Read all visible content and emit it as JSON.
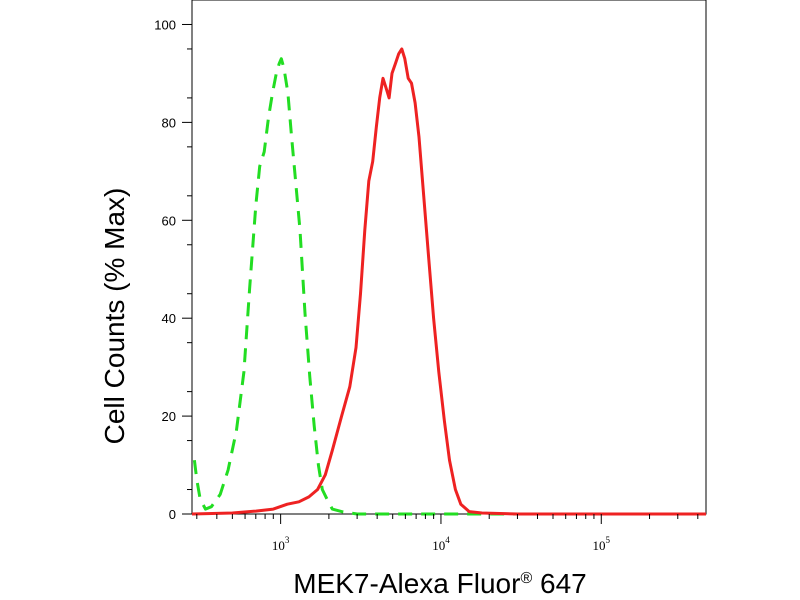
{
  "chart_data": {
    "type": "line",
    "title": "",
    "xlabel": "MEK7-Alexa Fluor",
    "xlabel_sup": "®",
    "xlabel_suffix": " 647",
    "ylabel": "Cell Counts (% Max)",
    "x_scale": "log",
    "xlim": [
      280,
      450000
    ],
    "ylim": [
      0,
      105
    ],
    "grid": false,
    "legend": "none",
    "yticks": [
      {
        "value": 0,
        "label": "0"
      },
      {
        "value": 20,
        "label": "20"
      },
      {
        "value": 40,
        "label": "40"
      },
      {
        "value": 60,
        "label": "60"
      },
      {
        "value": 80,
        "label": "80"
      },
      {
        "value": 100,
        "label": "100"
      }
    ],
    "xticks": [
      {
        "value": 1000,
        "base": "10",
        "exp": "3"
      },
      {
        "value": 10000,
        "base": "10",
        "exp": "4"
      },
      {
        "value": 100000,
        "base": "10",
        "exp": "5"
      }
    ],
    "series": [
      {
        "color": "#22dd22",
        "dash": "dashed",
        "points": [
          [
            290,
            11
          ],
          [
            300,
            7
          ],
          [
            315,
            3
          ],
          [
            340,
            1
          ],
          [
            370,
            1.5
          ],
          [
            420,
            4
          ],
          [
            470,
            9
          ],
          [
            530,
            17
          ],
          [
            590,
            29
          ],
          [
            640,
            46
          ],
          [
            700,
            63
          ],
          [
            740,
            71
          ],
          [
            790,
            74
          ],
          [
            840,
            81
          ],
          [
            890,
            86
          ],
          [
            940,
            90
          ],
          [
            980,
            92
          ],
          [
            1010,
            93
          ],
          [
            1050,
            91
          ],
          [
            1110,
            86
          ],
          [
            1170,
            77
          ],
          [
            1240,
            68
          ],
          [
            1320,
            58
          ],
          [
            1420,
            41
          ],
          [
            1520,
            28
          ],
          [
            1620,
            18
          ],
          [
            1720,
            10
          ],
          [
            1820,
            5
          ],
          [
            1950,
            3
          ],
          [
            2100,
            1
          ],
          [
            2400,
            0.5
          ],
          [
            3000,
            0
          ],
          [
            5000,
            0
          ],
          [
            10000,
            0
          ],
          [
            50000,
            0
          ],
          [
            450000,
            0
          ]
        ]
      },
      {
        "color": "#ee2222",
        "dash": "solid",
        "points": [
          [
            280,
            0
          ],
          [
            500,
            0.2
          ],
          [
            700,
            0.6
          ],
          [
            900,
            1
          ],
          [
            1100,
            2
          ],
          [
            1300,
            2.5
          ],
          [
            1500,
            3.5
          ],
          [
            1700,
            5
          ],
          [
            1900,
            8
          ],
          [
            2100,
            13
          ],
          [
            2400,
            20
          ],
          [
            2700,
            26
          ],
          [
            2950,
            34
          ],
          [
            3150,
            45
          ],
          [
            3350,
            58
          ],
          [
            3550,
            68
          ],
          [
            3750,
            72
          ],
          [
            3950,
            79
          ],
          [
            4150,
            85
          ],
          [
            4350,
            89
          ],
          [
            4550,
            87
          ],
          [
            4750,
            85
          ],
          [
            4950,
            90
          ],
          [
            5200,
            92
          ],
          [
            5450,
            94
          ],
          [
            5700,
            95
          ],
          [
            5950,
            93
          ],
          [
            6250,
            89
          ],
          [
            6550,
            88
          ],
          [
            6900,
            84
          ],
          [
            7300,
            77
          ],
          [
            7800,
            65
          ],
          [
            8400,
            52
          ],
          [
            9000,
            40
          ],
          [
            9700,
            29
          ],
          [
            10500,
            19
          ],
          [
            11300,
            11
          ],
          [
            12300,
            5
          ],
          [
            13300,
            2
          ],
          [
            15000,
            0.5
          ],
          [
            18000,
            0.2
          ],
          [
            30000,
            0
          ],
          [
            450000,
            0
          ]
        ]
      }
    ]
  }
}
